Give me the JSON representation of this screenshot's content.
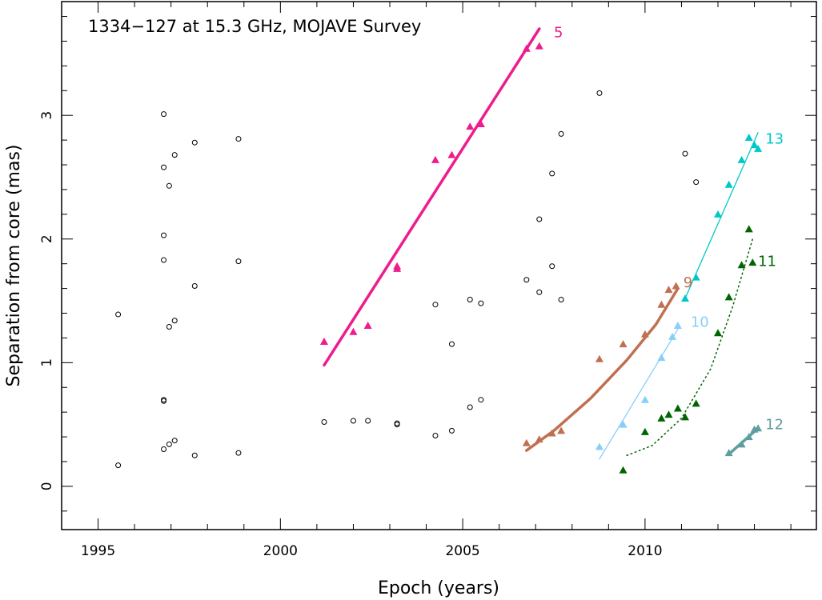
{
  "chart_data": {
    "type": "scatter",
    "title": "1334−127 at 15.3 GHz, MOJAVE Survey",
    "xlabel": "Epoch (years)",
    "ylabel": "Separation from core (mas)",
    "xlim": [
      1994,
      2014.7
    ],
    "ylim": [
      -0.35,
      3.92
    ],
    "x_ticks": [
      1995,
      2000,
      2005,
      2010
    ],
    "x_tick_labels": [
      "1995",
      "2000",
      "2005",
      "2010"
    ],
    "y_ticks": [
      0,
      1,
      2,
      3
    ],
    "y_tick_labels": [
      "0",
      "1",
      "2",
      "3"
    ],
    "grid": false,
    "legend": "none",
    "unassigned_points": {
      "marker": "open-circle",
      "color": "#000000",
      "points": [
        [
          1995.55,
          1.39
        ],
        [
          1995.55,
          0.17
        ],
        [
          1996.8,
          3.01
        ],
        [
          1996.8,
          2.58
        ],
        [
          1996.8,
          2.03
        ],
        [
          1996.8,
          1.83
        ],
        [
          1996.8,
          0.7
        ],
        [
          1996.8,
          0.69
        ],
        [
          1996.8,
          0.3
        ],
        [
          1996.95,
          2.43
        ],
        [
          1996.95,
          1.29
        ],
        [
          1996.95,
          0.34
        ],
        [
          1997.1,
          2.68
        ],
        [
          1997.1,
          1.34
        ],
        [
          1997.1,
          0.37
        ],
        [
          1997.65,
          2.78
        ],
        [
          1997.65,
          1.62
        ],
        [
          1997.65,
          0.25
        ],
        [
          1998.85,
          2.81
        ],
        [
          1998.85,
          1.82
        ],
        [
          1998.85,
          0.27
        ],
        [
          2001.2,
          0.52
        ],
        [
          2002.0,
          0.53
        ],
        [
          2002.4,
          0.53
        ],
        [
          2003.2,
          0.51
        ],
        [
          2003.2,
          0.5
        ],
        [
          2004.25,
          1.47
        ],
        [
          2004.25,
          0.41
        ],
        [
          2004.7,
          1.15
        ],
        [
          2004.7,
          0.45
        ],
        [
          2005.2,
          1.51
        ],
        [
          2005.2,
          0.64
        ],
        [
          2005.5,
          1.48
        ],
        [
          2005.5,
          0.7
        ],
        [
          2006.75,
          1.67
        ],
        [
          2007.1,
          2.16
        ],
        [
          2007.1,
          1.57
        ],
        [
          2007.45,
          2.53
        ],
        [
          2007.45,
          1.78
        ],
        [
          2007.7,
          2.85
        ],
        [
          2007.7,
          1.51
        ],
        [
          2008.75,
          3.18
        ],
        [
          2011.1,
          2.69
        ],
        [
          2011.4,
          2.46
        ]
      ]
    },
    "series": [
      {
        "name": "5",
        "color": "#ee1c8c",
        "points": [
          [
            2001.2,
            1.17
          ],
          [
            2002.0,
            1.25
          ],
          [
            2002.4,
            1.3
          ],
          [
            2003.2,
            1.78
          ],
          [
            2003.2,
            1.76
          ],
          [
            2004.25,
            2.64
          ],
          [
            2004.7,
            2.68
          ],
          [
            2005.2,
            2.91
          ],
          [
            2005.5,
            2.93
          ],
          [
            2006.75,
            3.54
          ],
          [
            2007.1,
            3.56
          ]
        ],
        "fit": [
          [
            2001.2,
            0.98
          ],
          [
            2007.1,
            3.7
          ]
        ],
        "fit_style": "thick-solid"
      },
      {
        "name": "9",
        "color": "#c07050",
        "points": [
          [
            2006.75,
            0.35
          ],
          [
            2007.1,
            0.38
          ],
          [
            2007.45,
            0.43
          ],
          [
            2007.7,
            0.45
          ],
          [
            2008.75,
            1.03
          ],
          [
            2009.4,
            1.15
          ],
          [
            2010.0,
            1.23
          ],
          [
            2010.45,
            1.47
          ],
          [
            2010.65,
            1.59
          ],
          [
            2010.85,
            1.62
          ]
        ],
        "fit": [
          [
            2006.75,
            0.29
          ],
          [
            2007.5,
            0.45
          ],
          [
            2008.5,
            0.71
          ],
          [
            2009.5,
            1.02
          ],
          [
            2010.3,
            1.31
          ],
          [
            2010.9,
            1.6
          ]
        ],
        "fit_style": "thick-solid"
      },
      {
        "name": "10",
        "color": "#87cefa",
        "points": [
          [
            2008.75,
            0.32
          ],
          [
            2009.4,
            0.5
          ],
          [
            2010.0,
            0.7
          ],
          [
            2010.45,
            1.04
          ],
          [
            2010.75,
            1.21
          ],
          [
            2010.9,
            1.3
          ]
        ],
        "fit": [
          [
            2008.75,
            0.22
          ],
          [
            2010.9,
            1.27
          ]
        ],
        "fit_style": "thin-solid"
      },
      {
        "name": "11",
        "color": "#006400",
        "points": [
          [
            2009.4,
            0.13
          ],
          [
            2010.0,
            0.44
          ],
          [
            2010.45,
            0.55
          ],
          [
            2010.65,
            0.58
          ],
          [
            2010.9,
            0.63
          ],
          [
            2011.1,
            0.56
          ],
          [
            2011.4,
            0.67
          ],
          [
            2012.0,
            1.24
          ],
          [
            2012.3,
            1.53
          ],
          [
            2012.65,
            1.79
          ],
          [
            2012.85,
            2.08
          ],
          [
            2012.95,
            1.81
          ]
        ],
        "fit": [
          [
            2009.5,
            0.25
          ],
          [
            2010.2,
            0.33
          ],
          [
            2011.0,
            0.55
          ],
          [
            2011.8,
            0.95
          ],
          [
            2012.4,
            1.45
          ],
          [
            2012.95,
            2.0
          ]
        ],
        "fit_style": "dotted"
      },
      {
        "name": "12",
        "color": "#5f9ea0",
        "points": [
          [
            2012.3,
            0.27
          ],
          [
            2012.65,
            0.34
          ],
          [
            2012.85,
            0.4
          ],
          [
            2013.0,
            0.46
          ],
          [
            2013.1,
            0.47
          ]
        ],
        "fit": [
          [
            2012.3,
            0.26
          ],
          [
            2013.1,
            0.47
          ]
        ],
        "fit_style": "thick-solid"
      },
      {
        "name": "13",
        "color": "#00c8c8",
        "points": [
          [
            2011.1,
            1.52
          ],
          [
            2011.4,
            1.69
          ],
          [
            2012.0,
            2.2
          ],
          [
            2012.3,
            2.44
          ],
          [
            2012.65,
            2.64
          ],
          [
            2012.85,
            2.82
          ],
          [
            2013.0,
            2.76
          ],
          [
            2013.1,
            2.73
          ]
        ],
        "fit": [
          [
            2011.1,
            1.52
          ],
          [
            2013.1,
            2.86
          ]
        ],
        "fit_style": "thin-solid"
      }
    ]
  }
}
